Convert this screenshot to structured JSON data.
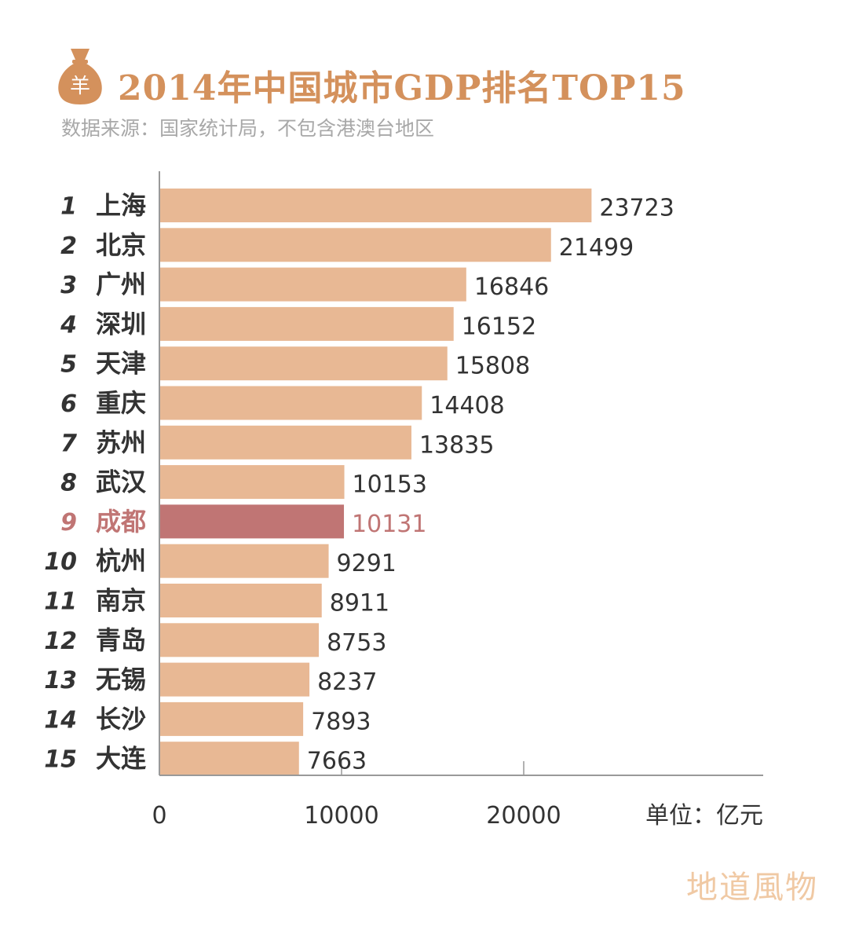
{
  "header": {
    "title": "2014年中国城市GDP排名TOP15",
    "subtitle": "数据来源：国家统计局，不包含港澳台地区",
    "icon": "money-bag-icon",
    "icon_symbol": "羊"
  },
  "chart_data": {
    "type": "bar",
    "orientation": "horizontal",
    "title": "2014年中国城市GDP排名TOP15",
    "unit_label": "单位：亿元",
    "xlim": [
      0,
      32000
    ],
    "x_ticks": [
      0,
      10000,
      20000
    ],
    "ranks": [
      "1",
      "2",
      "3",
      "4",
      "5",
      "6",
      "7",
      "8",
      "9",
      "10",
      "11",
      "12",
      "13",
      "14",
      "15"
    ],
    "categories": [
      "上海",
      "北京",
      "广州",
      "深圳",
      "天津",
      "重庆",
      "苏州",
      "武汉",
      "成都",
      "杭州",
      "南京",
      "青岛",
      "无锡",
      "长沙",
      "大连"
    ],
    "values": [
      23723,
      21499,
      16846,
      16152,
      15808,
      14408,
      13835,
      10153,
      10131,
      9291,
      8911,
      8753,
      8237,
      7893,
      7663
    ],
    "highlight_index": 8
  },
  "colors": {
    "bar": "#e8b894",
    "highlight_bar": "#c07574",
    "highlight_text": "#c07574",
    "title": "#d4915c",
    "label": "#333333",
    "axis": "#999999",
    "brand": "#f0c9a4"
  },
  "footer": {
    "brand": "地道風物"
  }
}
